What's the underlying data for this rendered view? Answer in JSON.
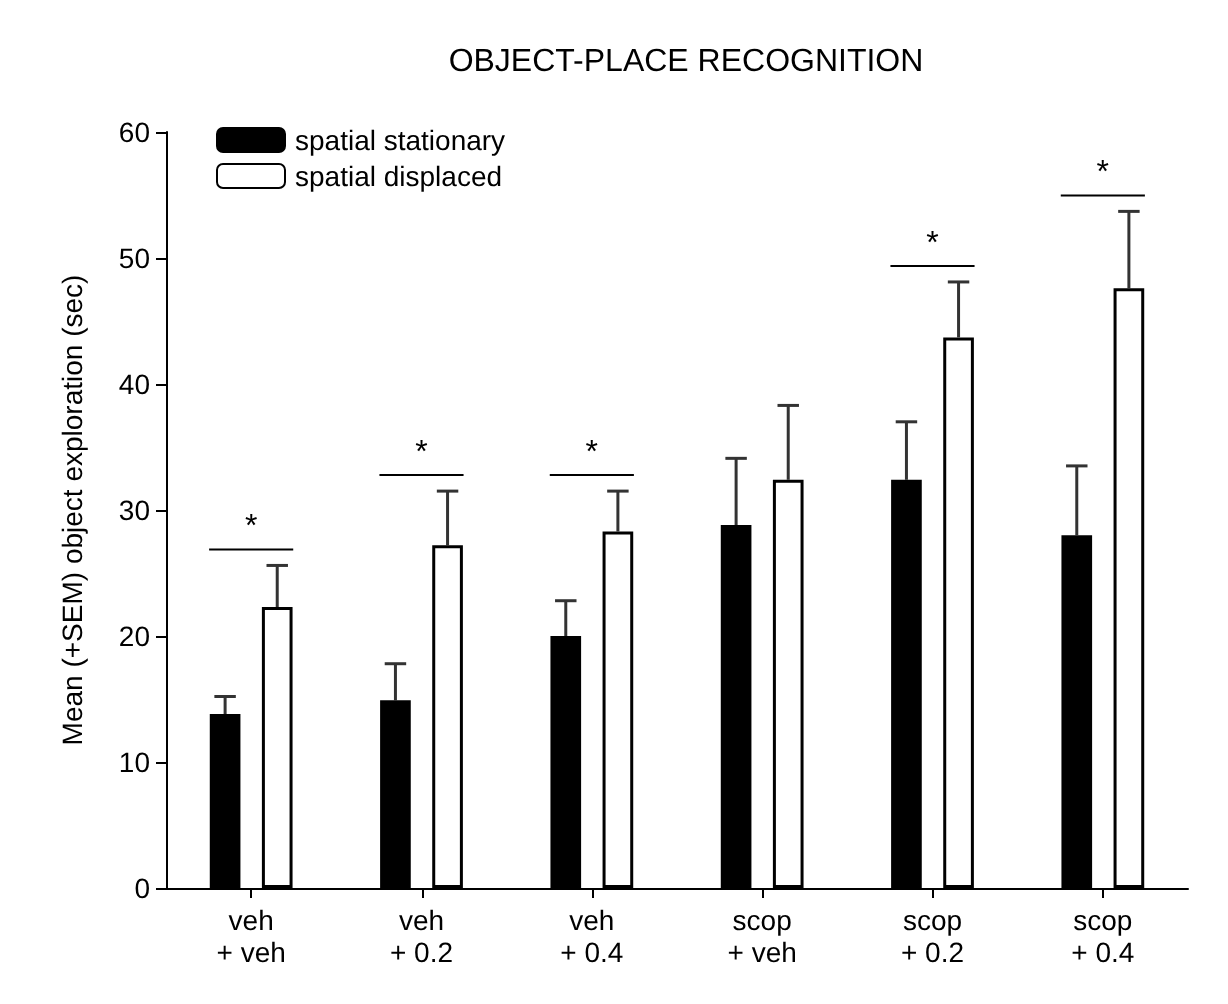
{
  "chart_data": {
    "type": "bar",
    "title": "OBJECT-PLACE RECOGNITION",
    "ylabel": "Mean (+SEM) object exploration (sec)",
    "categories": [
      "veh\n+ veh",
      "veh\n+ 0.2",
      "veh\n+ 0.4",
      "scop\n+ veh",
      "scop\n+ 0.2",
      "scop\n+ 0.4"
    ],
    "series": [
      {
        "name": "spatial stationary",
        "color": "#000000",
        "values": [
          13.8,
          14.9,
          20.0,
          28.8,
          32.4,
          28.0
        ],
        "errors": [
          [
            13.8,
            15.2
          ],
          [
            14.9,
            17.8
          ],
          [
            20.0,
            22.8
          ],
          [
            28.8,
            34.1
          ],
          [
            32.4,
            37.0
          ],
          [
            28.0,
            33.5
          ]
        ]
      },
      {
        "name": "spatial displaced",
        "color": "#ffffff",
        "values": [
          22.3,
          27.2,
          28.3,
          32.4,
          43.7,
          47.6
        ],
        "errors": [
          [
            22.3,
            25.6
          ],
          [
            27.2,
            31.5
          ],
          [
            28.3,
            31.5
          ],
          [
            32.4,
            38.3
          ],
          [
            43.7,
            48.1
          ],
          [
            47.6,
            53.7
          ]
        ]
      }
    ],
    "ylim": [
      0,
      60
    ],
    "yticks": [
      0,
      10,
      20,
      30,
      40,
      50,
      60
    ],
    "grid": false,
    "legend": "top left",
    "annotations": [
      "*",
      "*",
      "*",
      "*",
      "*"
    ]
  }
}
